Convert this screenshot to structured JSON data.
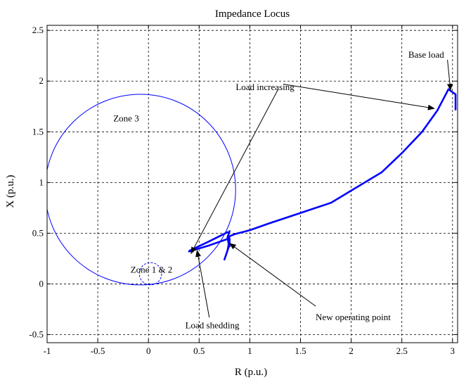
{
  "chart_data": {
    "type": "line",
    "title": "Impedance Locus",
    "xlabel": "R (p.u.)",
    "ylabel": "X (p.u.)",
    "xlim": [
      -1,
      3.05
    ],
    "ylim": [
      -0.58,
      2.55
    ],
    "grid": true,
    "xticks": [
      {
        "v": -1,
        "label": "-1"
      },
      {
        "v": -0.5,
        "label": "-0.5"
      },
      {
        "v": 0,
        "label": "0"
      },
      {
        "v": 0.5,
        "label": "0.5"
      },
      {
        "v": 1,
        "label": "1"
      },
      {
        "v": 1.5,
        "label": "1.5"
      },
      {
        "v": 2,
        "label": "2"
      },
      {
        "v": 2.5,
        "label": "2.5"
      },
      {
        "v": 3,
        "label": "3"
      }
    ],
    "yticks": [
      {
        "v": -0.5,
        "label": "-0.5"
      },
      {
        "v": 0,
        "label": "0"
      },
      {
        "v": 0.5,
        "label": "0.5"
      },
      {
        "v": 1,
        "label": "1"
      },
      {
        "v": 1.5,
        "label": "1.5"
      },
      {
        "v": 2,
        "label": "2"
      },
      {
        "v": 2.5,
        "label": "2.5"
      }
    ],
    "zones": [
      {
        "name": "Zone 3",
        "center": [
          -0.08,
          0.93
        ],
        "radius": 0.94,
        "style": "solid",
        "color": "#0000ff"
      },
      {
        "name": "Zone 1 & 2",
        "center": [
          0.02,
          0.1
        ],
        "radius": 0.11,
        "style": "dashed",
        "color": "#0000ff"
      }
    ],
    "series": [
      {
        "color": "#0000ff",
        "x": [
          3.03,
          3.03,
          3.0,
          2.96,
          2.85,
          2.7,
          2.5,
          2.3,
          2.0,
          1.8,
          1.5,
          1.2,
          1.0,
          0.85,
          0.8,
          0.78,
          0.8,
          0.78,
          0.79,
          0.8,
          0.8,
          0.78,
          0.75,
          0.79,
          0.8,
          0.6,
          0.4,
          0.41,
          0.6,
          0.78
        ],
        "y": [
          1.72,
          1.87,
          1.89,
          1.92,
          1.71,
          1.5,
          1.29,
          1.1,
          0.92,
          0.8,
          0.7,
          0.6,
          0.53,
          0.49,
          0.47,
          0.46,
          0.52,
          0.46,
          0.4,
          0.37,
          0.44,
          0.33,
          0.24,
          0.36,
          0.45,
          0.38,
          0.32,
          0.33,
          0.42,
          0.51
        ]
      }
    ],
    "annotations": [
      {
        "text": "Zone 3",
        "x": -0.22,
        "y": 1.63
      },
      {
        "text": "Zone 1 & 2",
        "x": 0.03,
        "y": 0.14
      },
      {
        "text": "Base load",
        "x": 2.74,
        "y": 2.26
      },
      {
        "text": "Load increasing",
        "x": 1.15,
        "y": 1.94
      },
      {
        "text": "Load shedding",
        "x": 0.63,
        "y": -0.41
      },
      {
        "text": "New operating point",
        "x": 2.02,
        "y": -0.33
      }
    ],
    "arrows": [
      {
        "from": [
          2.95,
          2.21
        ],
        "to": [
          2.98,
          1.91
        ]
      },
      {
        "from": [
          1.33,
          1.97
        ],
        "to": [
          2.82,
          1.73
        ]
      },
      {
        "from": [
          1.28,
          1.92
        ],
        "to": [
          0.42,
          0.3
        ]
      },
      {
        "from": [
          0.6,
          -0.33
        ],
        "to": [
          0.48,
          0.33
        ]
      },
      {
        "from": [
          1.65,
          -0.22
        ],
        "to": [
          0.8,
          0.4
        ]
      }
    ]
  }
}
